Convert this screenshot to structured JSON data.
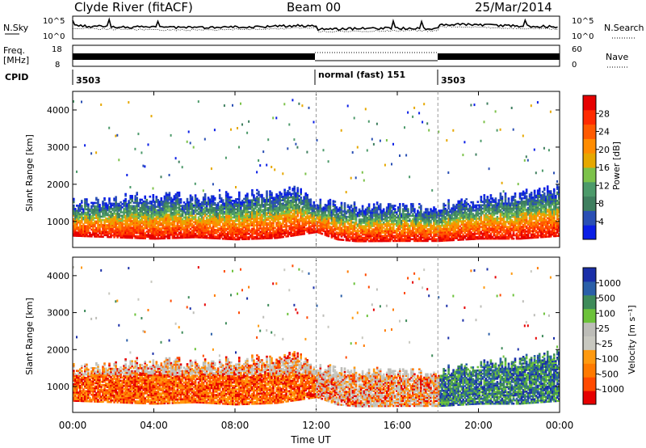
{
  "header": {
    "title": "Clyde River (fitACF)",
    "beam": "Beam 00",
    "date": "25/Mar/2014"
  },
  "sky_panel": {
    "left_label": "N.Sky",
    "right_label": "N.Search",
    "left_ticks": [
      "10^5",
      "10^0"
    ],
    "right_ticks": [
      "10^5",
      "10^0"
    ],
    "right_legend_marker": "dotted"
  },
  "freq_panel": {
    "left_label_line1": "Freq.",
    "left_label_line2": "[MHz]",
    "right_label": "Nave",
    "left_ticks": [
      "18",
      "8"
    ],
    "right_ticks": [
      "60",
      "0"
    ],
    "right_legend_marker": "dotted"
  },
  "cpid_panel": {
    "label": "CPID",
    "segments": [
      {
        "text": "3503",
        "start_h": 0
      },
      {
        "text": "normal (fast)  151",
        "start_h": 12
      },
      {
        "text": "3503",
        "start_h": 18
      }
    ]
  },
  "colors": {
    "power": [
      "#0a1ee6",
      "#2a4fb4",
      "#3f7f5f",
      "#4c9a6a",
      "#7cc24a",
      "#e6a800",
      "#ff8c00",
      "#ff5a00",
      "#ff2a00",
      "#e60000"
    ],
    "velocity": [
      "#e60000",
      "#ff4a00",
      "#ff7a00",
      "#ff9a10",
      "#c8c8c0",
      "#bdbdb8",
      "#6cc23a",
      "#3e8b5a",
      "#2a5fa8",
      "#1a2fa8"
    ],
    "ground_scatter": "#c0c0b8"
  },
  "chart_data": [
    {
      "type": "heatmap",
      "name": "power",
      "xlabel": "",
      "ylabel": "Slant Range [km]",
      "xlim": [
        0,
        24
      ],
      "ylim": [
        300,
        4500
      ],
      "x_ticks": [
        0,
        4,
        8,
        12,
        16,
        20,
        24
      ],
      "y_ticks": [
        1000,
        2000,
        3000,
        4000
      ],
      "colorbar": {
        "label": "Power [dB]",
        "range": [
          0,
          32
        ],
        "ticks": [
          "4",
          "8",
          "12",
          "16",
          "20",
          "24",
          "28"
        ]
      },
      "profile": {
        "x_hours": [
          0,
          2,
          4,
          6,
          8,
          10,
          11,
          12,
          13,
          14,
          16,
          18,
          20,
          22,
          24
        ],
        "lower_km": [
          600,
          560,
          520,
          560,
          500,
          540,
          620,
          700,
          500,
          450,
          460,
          460,
          520,
          520,
          600
        ],
        "upper_km": [
          1400,
          1500,
          1600,
          1500,
          1600,
          1700,
          1800,
          1400,
          1350,
          1300,
          1250,
          1300,
          1500,
          1600,
          1800
        ]
      }
    },
    {
      "type": "heatmap",
      "name": "velocity",
      "xlabel": "Time UT",
      "ylabel": "Slant Range [km]",
      "xlim": [
        0,
        24
      ],
      "ylim": [
        300,
        4500
      ],
      "x_ticks": [
        0,
        4,
        8,
        12,
        16,
        20,
        24
      ],
      "x_tick_labels": [
        "00:00",
        "04:00",
        "08:00",
        "12:00",
        "16:00",
        "20:00",
        "00:00"
      ],
      "y_ticks": [
        1000,
        2000,
        3000,
        4000
      ],
      "colorbar": {
        "label": "Velocity [m s⁻¹]",
        "ticks": [
          "1000",
          "500",
          "100",
          "25",
          "-25",
          "-100",
          "-500",
          "-1000"
        ]
      }
    }
  ]
}
